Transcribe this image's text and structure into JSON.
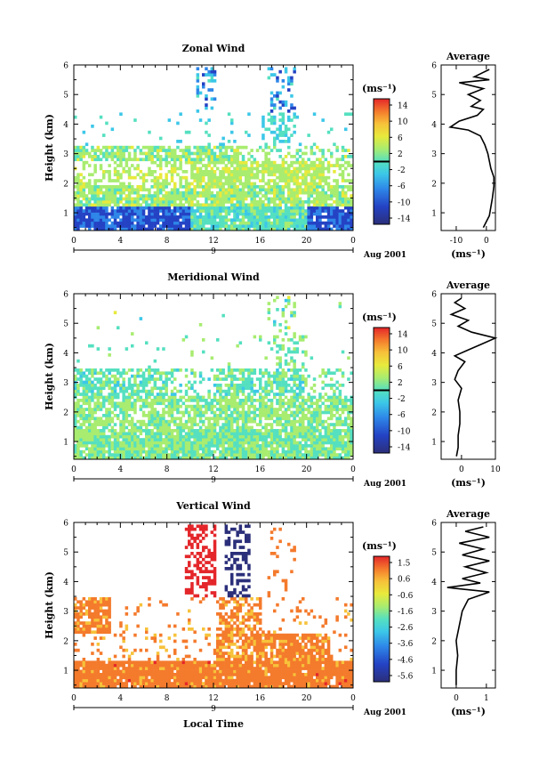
{
  "chart_data": [
    {
      "type": "heatmap",
      "id": "zonal",
      "title": "Zonal Wind",
      "ylabel": "Height (km)",
      "yticks": [
        "1",
        "2",
        "3",
        "4",
        "5",
        "6"
      ],
      "ylim": [
        0.4,
        6
      ],
      "xticks": [
        "0",
        "4",
        "8",
        "12",
        "16",
        "20",
        "0"
      ],
      "xlim": [
        0,
        24
      ],
      "date_label": "9",
      "month_label": "Aug 2001",
      "colorbar": {
        "unit": "(ms⁻¹)",
        "ticks": [
          "14",
          "10",
          "6",
          "2",
          "-2",
          "-6",
          "-10",
          "-14"
        ],
        "range": [
          -16,
          16
        ],
        "marker_value": 0
      },
      "profile": {
        "title": "Average",
        "xlabel": "(ms⁻¹)",
        "xticks": [
          "-10",
          "0"
        ],
        "xtick_values": [
          -10,
          0
        ],
        "xlim": [
          -15,
          3
        ],
        "yticks": [
          "1",
          "2",
          "3",
          "4",
          "5",
          "6"
        ],
        "points": [
          [
            -1,
            0.5
          ],
          [
            0,
            0.7
          ],
          [
            1,
            0.9
          ],
          [
            1.5,
            1.2
          ],
          [
            2,
            1.5
          ],
          [
            2.5,
            1.9
          ],
          [
            2.5,
            2.2
          ],
          [
            1.5,
            2.5
          ],
          [
            0.5,
            3.0
          ],
          [
            -0.5,
            3.3
          ],
          [
            -2,
            3.6
          ],
          [
            -6,
            3.8
          ],
          [
            -12,
            3.9
          ],
          [
            -9,
            4.1
          ],
          [
            -3,
            4.3
          ],
          [
            -1,
            4.5
          ],
          [
            -5,
            4.6
          ],
          [
            -2,
            4.8
          ],
          [
            -6,
            5.0
          ],
          [
            -1,
            5.2
          ],
          [
            -9,
            5.4
          ],
          [
            1,
            5.5
          ],
          [
            -4,
            5.6
          ],
          [
            -1,
            5.75
          ],
          [
            1,
            5.85
          ]
        ]
      }
    },
    {
      "type": "heatmap",
      "id": "meridional",
      "title": "Meridional Wind",
      "ylabel": "Height (km)",
      "yticks": [
        "1",
        "2",
        "3",
        "4",
        "5",
        "6"
      ],
      "ylim": [
        0.4,
        6
      ],
      "xticks": [
        "0",
        "4",
        "8",
        "12",
        "16",
        "20",
        "0"
      ],
      "xlim": [
        0,
        24
      ],
      "date_label": "9",
      "month_label": "Aug 2001",
      "colorbar": {
        "unit": "(ms⁻¹)",
        "ticks": [
          "14",
          "10",
          "6",
          "2",
          "-2",
          "-6",
          "-10",
          "-14"
        ],
        "range": [
          -16,
          16
        ],
        "marker_value": 0
      },
      "profile": {
        "title": "Average",
        "xlabel": "(ms⁻¹)",
        "xticks": [
          "0",
          "10"
        ],
        "xtick_values": [
          0,
          10
        ],
        "xlim": [
          -6,
          10
        ],
        "yticks": [
          "1",
          "2",
          "3",
          "4",
          "5",
          "6"
        ],
        "points": [
          [
            -1.5,
            0.5
          ],
          [
            -1,
            0.8
          ],
          [
            -1,
            1.2
          ],
          [
            -0.5,
            1.6
          ],
          [
            -0.5,
            2.0
          ],
          [
            -1,
            2.4
          ],
          [
            0,
            2.8
          ],
          [
            -2,
            3.1
          ],
          [
            -1,
            3.4
          ],
          [
            1,
            3.7
          ],
          [
            -2,
            3.9
          ],
          [
            2,
            4.1
          ],
          [
            6,
            4.3
          ],
          [
            10,
            4.5
          ],
          [
            3,
            4.7
          ],
          [
            -1,
            4.9
          ],
          [
            2,
            5.1
          ],
          [
            -3,
            5.3
          ],
          [
            1,
            5.5
          ],
          [
            -2,
            5.7
          ],
          [
            0,
            5.85
          ]
        ]
      }
    },
    {
      "type": "heatmap",
      "id": "vertical",
      "title": "Vertical Wind",
      "ylabel": "Height (km)",
      "xlabel": "Local Time",
      "yticks": [
        "1",
        "2",
        "3",
        "4",
        "5",
        "6"
      ],
      "ylim": [
        0.4,
        6
      ],
      "xticks": [
        "0",
        "4",
        "8",
        "12",
        "16",
        "20",
        "0"
      ],
      "xlim": [
        0,
        24
      ],
      "date_label": "9",
      "month_label": "Aug 2001",
      "colorbar": {
        "unit": "(ms⁻¹)",
        "ticks": [
          "1.5",
          "0.6",
          "-0.6",
          "-1.6",
          "-2.6",
          "-3.6",
          "-4.6",
          "-5.6"
        ],
        "range": [
          -6.1,
          2.0
        ]
      },
      "profile": {
        "title": "Average",
        "xlabel": "(ms⁻¹)",
        "xticks": [
          "0",
          "1"
        ],
        "xtick_values": [
          0,
          1
        ],
        "xlim": [
          -0.5,
          1.3
        ],
        "yticks": [
          "1",
          "2",
          "3",
          "4",
          "5",
          "6"
        ],
        "points": [
          [
            0,
            0.5
          ],
          [
            0,
            1.0
          ],
          [
            0.05,
            1.5
          ],
          [
            0,
            2.0
          ],
          [
            0.1,
            2.5
          ],
          [
            0.2,
            3.0
          ],
          [
            0.4,
            3.4
          ],
          [
            1.1,
            3.65
          ],
          [
            -0.3,
            3.8
          ],
          [
            0.8,
            3.95
          ],
          [
            0.2,
            4.1
          ],
          [
            1.0,
            4.3
          ],
          [
            0.3,
            4.5
          ],
          [
            1.1,
            4.7
          ],
          [
            0.2,
            4.9
          ],
          [
            0.9,
            5.1
          ],
          [
            0.1,
            5.3
          ],
          [
            1.1,
            5.5
          ],
          [
            0.3,
            5.7
          ],
          [
            0.9,
            5.85
          ]
        ]
      }
    }
  ]
}
